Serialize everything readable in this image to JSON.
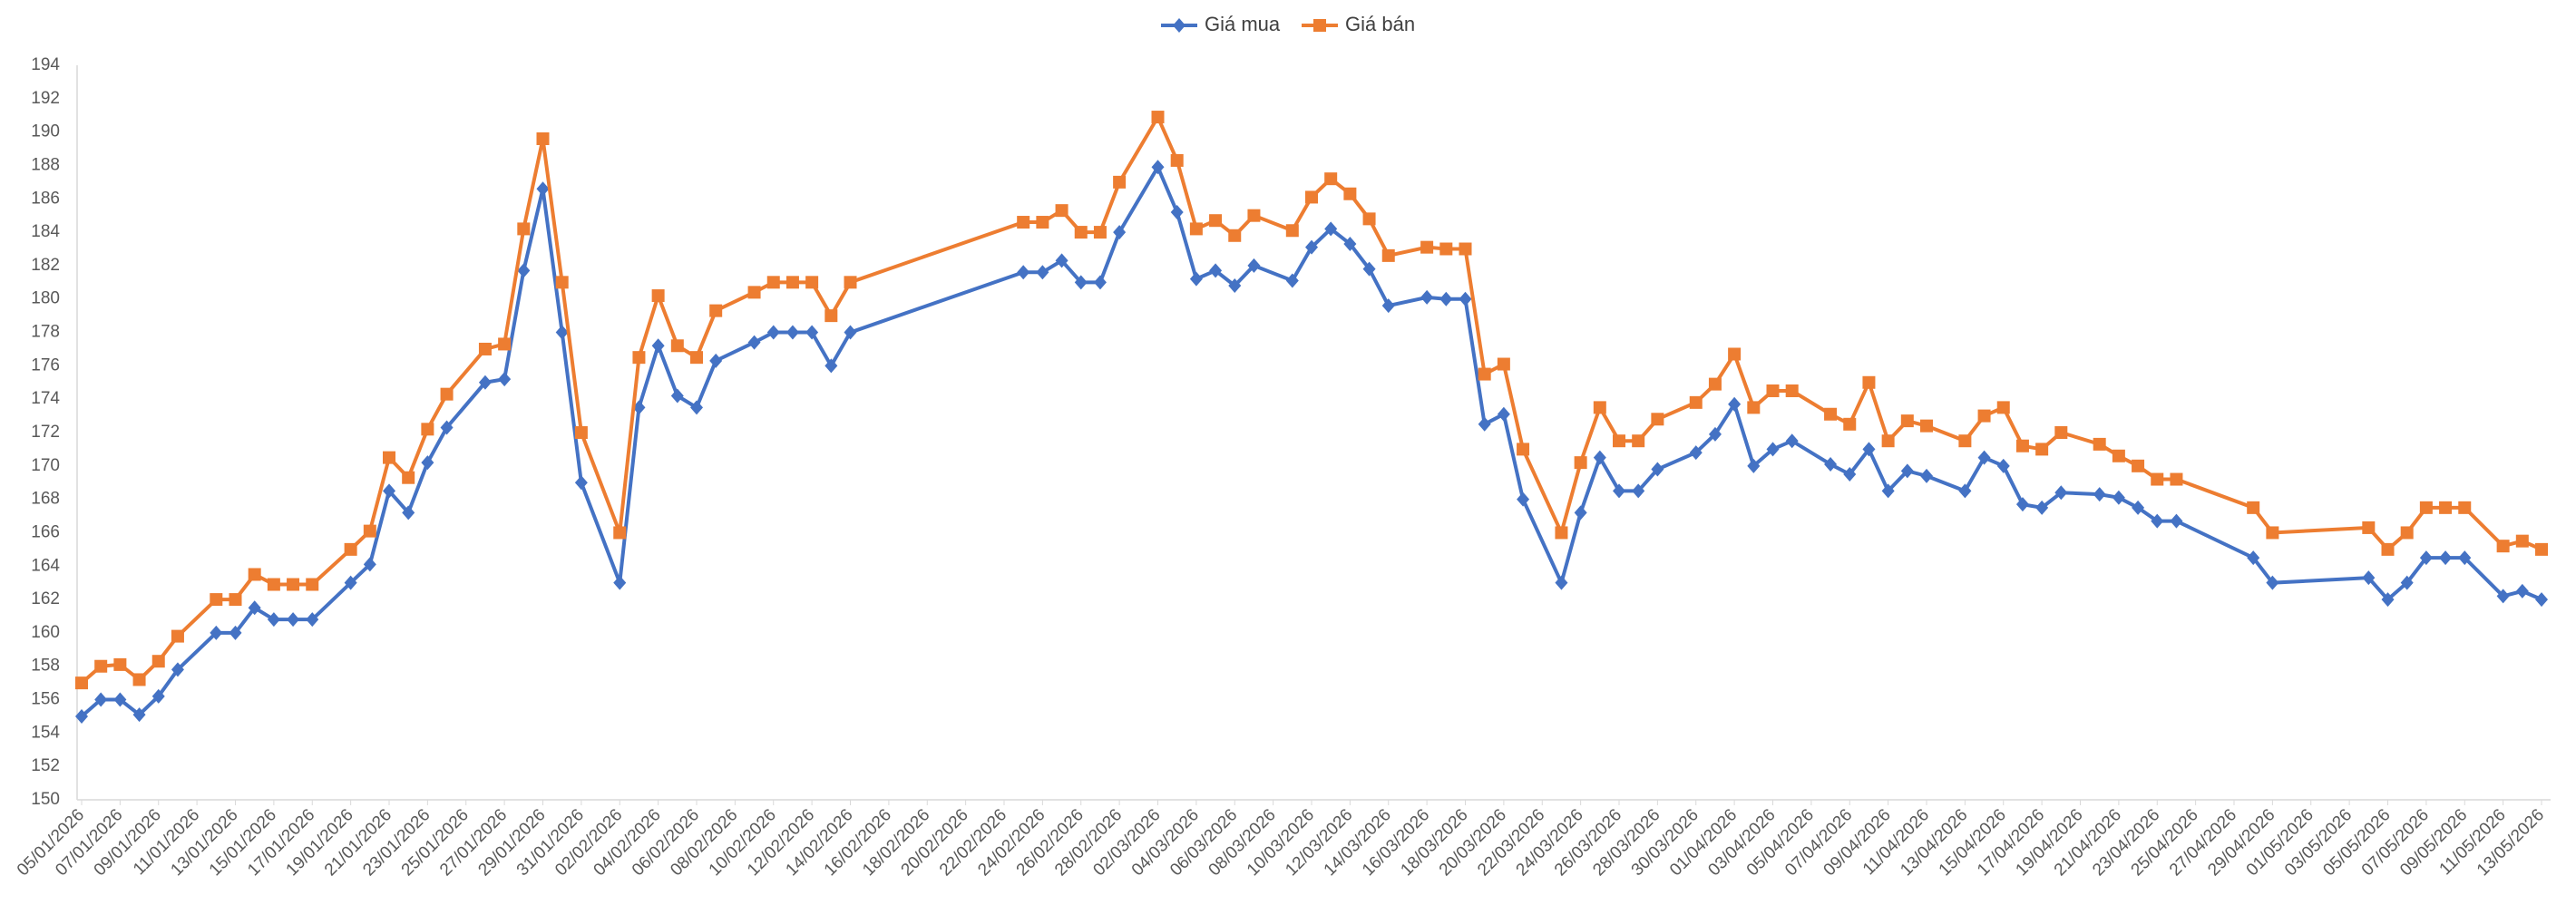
{
  "chart_data": {
    "type": "line",
    "x": [
      "05/01/2026",
      "06/01/2026",
      "07/01/2026",
      "08/01/2026",
      "09/01/2026",
      "10/01/2026",
      "12/01/2026",
      "13/01/2026",
      "14/01/2026",
      "15/01/2026",
      "16/01/2026",
      "17/01/2026",
      "19/01/2026",
      "20/01/2026",
      "21/01/2026",
      "22/01/2026",
      "23/01/2026",
      "24/01/2026",
      "26/01/2026",
      "27/01/2026",
      "28/01/2026",
      "29/01/2026",
      "30/01/2026",
      "31/01/2026",
      "02/02/2026",
      "03/02/2026",
      "04/02/2026",
      "05/02/2026",
      "06/02/2026",
      "07/02/2026",
      "09/02/2026",
      "10/02/2026",
      "11/02/2026",
      "12/02/2026",
      "13/02/2026",
      "14/02/2026",
      "23/02/2026",
      "24/02/2026",
      "25/02/2026",
      "26/02/2026",
      "27/02/2026",
      "28/02/2026",
      "02/03/2026",
      "03/03/2026",
      "04/03/2026",
      "05/03/2026",
      "06/03/2026",
      "07/03/2026",
      "09/03/2026",
      "10/03/2026",
      "11/03/2026",
      "12/03/2026",
      "13/03/2026",
      "14/03/2026",
      "16/03/2026",
      "17/03/2026",
      "18/03/2026",
      "19/03/2026",
      "20/03/2026",
      "21/03/2026",
      "23/03/2026",
      "24/03/2026",
      "25/03/2026",
      "26/03/2026",
      "27/03/2026",
      "28/03/2026",
      "30/03/2026",
      "31/03/2026",
      "01/04/2026",
      "02/04/2026",
      "03/04/2026",
      "04/04/2026",
      "06/04/2026",
      "07/04/2026",
      "08/04/2026",
      "09/04/2026",
      "10/04/2026",
      "11/04/2026",
      "13/04/2026",
      "14/04/2026",
      "15/04/2026",
      "16/04/2026",
      "17/04/2026",
      "18/04/2026",
      "20/04/2026",
      "21/04/2026",
      "22/04/2026",
      "23/04/2026",
      "24/04/2026",
      "28/04/2026",
      "29/04/2026",
      "04/05/2026",
      "05/05/2026",
      "06/05/2026",
      "07/05/2026",
      "08/05/2026",
      "09/05/2026",
      "11/05/2026",
      "12/05/2026",
      "13/05/2026"
    ],
    "series": [
      {
        "name": "Giá mua",
        "color": "#4472c4",
        "marker": "diamond",
        "values": [
          155,
          156,
          156,
          155.1,
          156.2,
          157.8,
          160,
          160,
          161.5,
          160.8,
          160.8,
          160.8,
          163,
          164.1,
          168.5,
          167.2,
          170.2,
          172.3,
          175,
          175.2,
          181.7,
          186.6,
          178,
          169,
          163,
          173.5,
          177.2,
          174.2,
          173.5,
          176.3,
          177.4,
          178,
          178,
          178,
          176,
          178,
          181.6,
          181.6,
          182.3,
          181,
          181,
          184,
          187.9,
          185.2,
          181.2,
          181.7,
          180.8,
          182,
          181.1,
          183.1,
          184.2,
          183.3,
          181.8,
          179.6,
          180.1,
          180,
          180,
          172.5,
          173.1,
          168,
          163,
          167.2,
          170.5,
          168.5,
          168.5,
          169.8,
          170.8,
          171.9,
          173.7,
          170,
          171,
          171.5,
          170.1,
          169.5,
          171,
          168.5,
          169.7,
          169.4,
          168.5,
          170.5,
          170,
          167.7,
          167.5,
          168.4,
          168.3,
          168.1,
          167.5,
          166.7,
          166.7,
          164.5,
          163,
          163.3,
          162,
          163,
          164.5,
          164.5,
          164.5,
          162.2,
          162.5,
          162
        ]
      },
      {
        "name": "Giá bán",
        "color": "#ed7d31",
        "marker": "square",
        "values": [
          157,
          158,
          158.1,
          157.2,
          158.3,
          159.8,
          162,
          162,
          163.5,
          162.9,
          162.9,
          162.9,
          165,
          166.1,
          170.5,
          169.3,
          172.2,
          174.3,
          177,
          177.3,
          184.2,
          189.6,
          181,
          172,
          166,
          176.5,
          180.2,
          177.2,
          176.5,
          179.3,
          180.4,
          181,
          181,
          181,
          179,
          181,
          184.6,
          184.6,
          185.3,
          184,
          184,
          187,
          190.9,
          188.3,
          184.2,
          184.7,
          183.8,
          185,
          184.1,
          186.1,
          187.2,
          186.3,
          184.8,
          182.6,
          183.1,
          183,
          183,
          175.5,
          176.1,
          171,
          166,
          170.2,
          173.5,
          171.5,
          171.5,
          172.8,
          173.8,
          174.9,
          176.7,
          173.5,
          174.5,
          174.5,
          173.1,
          172.5,
          175,
          171.5,
          172.7,
          172.4,
          171.5,
          173,
          173.5,
          171.2,
          171,
          172,
          171.3,
          170.6,
          170,
          169.2,
          169.2,
          167.5,
          166,
          166.3,
          165,
          166,
          167.5,
          167.5,
          167.5,
          165.2,
          165.5,
          165
        ]
      }
    ],
    "xlim": [
      "05/01/2026",
      "13/05/2026"
    ],
    "xticks": [
      "05/01/2026",
      "07/01/2026",
      "09/01/2026",
      "11/01/2026",
      "13/01/2026",
      "15/01/2026",
      "17/01/2026",
      "19/01/2026",
      "21/01/2026",
      "23/01/2026",
      "25/01/2026",
      "27/01/2026",
      "29/01/2026",
      "31/01/2026",
      "02/02/2026",
      "04/02/2026",
      "06/02/2026",
      "08/02/2026",
      "10/02/2026",
      "12/02/2026",
      "14/02/2026",
      "16/02/2026",
      "18/02/2026",
      "20/02/2026",
      "22/02/2026",
      "24/02/2026",
      "26/02/2026",
      "28/02/2026",
      "02/03/2026",
      "04/03/2026",
      "06/03/2026",
      "08/03/2026",
      "10/03/2026",
      "12/03/2026",
      "14/03/2026",
      "16/03/2026",
      "18/03/2026",
      "20/03/2026",
      "22/03/2026",
      "24/03/2026",
      "26/03/2026",
      "28/03/2026",
      "30/03/2026",
      "01/04/2026",
      "03/04/2026",
      "05/04/2026",
      "07/04/2026",
      "09/04/2026",
      "11/04/2026",
      "13/04/2026",
      "15/04/2026",
      "17/04/2026",
      "19/04/2026",
      "21/04/2026",
      "23/04/2026",
      "25/04/2026",
      "27/04/2026",
      "29/04/2026",
      "01/05/2026",
      "03/05/2026",
      "05/05/2026",
      "07/05/2026",
      "09/05/2026",
      "11/05/2026",
      "13/05/2026"
    ],
    "ylim": [
      150,
      194
    ],
    "yticks": [
      150,
      152,
      154,
      156,
      158,
      160,
      162,
      164,
      166,
      168,
      170,
      172,
      174,
      176,
      178,
      180,
      182,
      184,
      186,
      188,
      190,
      192,
      194
    ],
    "legend": "top",
    "grid": false
  }
}
